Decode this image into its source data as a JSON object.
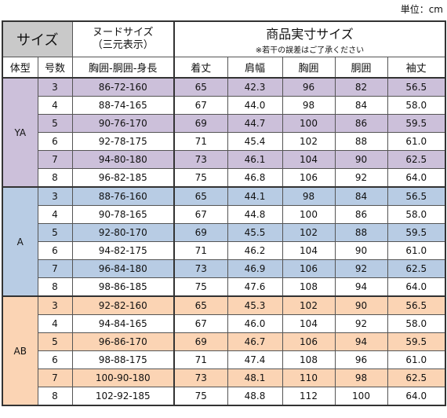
{
  "unit_label": "単位：cm",
  "header": {
    "size": "サイズ",
    "nude_line1": "ヌードサイズ",
    "nude_line2": "（三元表示）",
    "product": "商品実寸サイズ",
    "product_note": "※若干の誤差はご了承ください",
    "col_type": "体型",
    "col_number": "号数",
    "col_body": "胸囲-胴囲-身長",
    "col_length": "着丈",
    "col_shoulder": "肩幅",
    "col_chest": "胸囲",
    "col_waist": "胴囲",
    "col_sleeve": "袖丈"
  },
  "colors": {
    "purple": "#ccc0da",
    "blue": "#b8cce4",
    "orange": "#fbd4b4",
    "gray": "#c9c9c9"
  },
  "groups": [
    {
      "type": "YA",
      "color": "purple",
      "rows": [
        {
          "num": "3",
          "body": "86-72-160",
          "length": "65",
          "shoulder": "42.3",
          "chest": "96",
          "waist": "82",
          "sleeve": "56.5"
        },
        {
          "num": "4",
          "body": "88-74-165",
          "length": "67",
          "shoulder": "44.0",
          "chest": "98",
          "waist": "84",
          "sleeve": "58.0"
        },
        {
          "num": "5",
          "body": "90-76-170",
          "length": "69",
          "shoulder": "44.7",
          "chest": "100",
          "waist": "86",
          "sleeve": "59.5"
        },
        {
          "num": "6",
          "body": "92-78-175",
          "length": "71",
          "shoulder": "45.4",
          "chest": "102",
          "waist": "88",
          "sleeve": "61.0"
        },
        {
          "num": "7",
          "body": "94-80-180",
          "length": "73",
          "shoulder": "46.1",
          "chest": "104",
          "waist": "90",
          "sleeve": "62.5"
        },
        {
          "num": "8",
          "body": "96-82-185",
          "length": "75",
          "shoulder": "46.8",
          "chest": "106",
          "waist": "92",
          "sleeve": "64.0"
        }
      ]
    },
    {
      "type": "A",
      "color": "blue",
      "rows": [
        {
          "num": "3",
          "body": "88-76-160",
          "length": "65",
          "shoulder": "44.1",
          "chest": "98",
          "waist": "84",
          "sleeve": "56.5"
        },
        {
          "num": "4",
          "body": "90-78-165",
          "length": "67",
          "shoulder": "44.8",
          "chest": "100",
          "waist": "86",
          "sleeve": "58.0"
        },
        {
          "num": "5",
          "body": "92-80-170",
          "length": "69",
          "shoulder": "45.5",
          "chest": "102",
          "waist": "88",
          "sleeve": "59.5"
        },
        {
          "num": "6",
          "body": "94-82-175",
          "length": "71",
          "shoulder": "46.2",
          "chest": "104",
          "waist": "90",
          "sleeve": "61.0"
        },
        {
          "num": "7",
          "body": "96-84-180",
          "length": "73",
          "shoulder": "46.9",
          "chest": "106",
          "waist": "92",
          "sleeve": "62.5"
        },
        {
          "num": "8",
          "body": "98-86-185",
          "length": "75",
          "shoulder": "47.6",
          "chest": "108",
          "waist": "94",
          "sleeve": "64.0"
        }
      ]
    },
    {
      "type": "AB",
      "color": "orange",
      "rows": [
        {
          "num": "3",
          "body": "92-82-160",
          "length": "65",
          "shoulder": "45.3",
          "chest": "102",
          "waist": "90",
          "sleeve": "56.5"
        },
        {
          "num": "4",
          "body": "94-84-165",
          "length": "67",
          "shoulder": "46.0",
          "chest": "104",
          "waist": "92",
          "sleeve": "58.0"
        },
        {
          "num": "5",
          "body": "96-86-170",
          "length": "69",
          "shoulder": "46.7",
          "chest": "106",
          "waist": "94",
          "sleeve": "59.5"
        },
        {
          "num": "6",
          "body": "98-88-175",
          "length": "71",
          "shoulder": "47.4",
          "chest": "108",
          "waist": "96",
          "sleeve": "61.0"
        },
        {
          "num": "7",
          "body": "100-90-180",
          "length": "73",
          "shoulder": "48.1",
          "chest": "110",
          "waist": "98",
          "sleeve": "62.5"
        },
        {
          "num": "8",
          "body": "102-92-185",
          "length": "75",
          "shoulder": "48.8",
          "chest": "112",
          "waist": "100",
          "sleeve": "64.0"
        }
      ]
    }
  ]
}
